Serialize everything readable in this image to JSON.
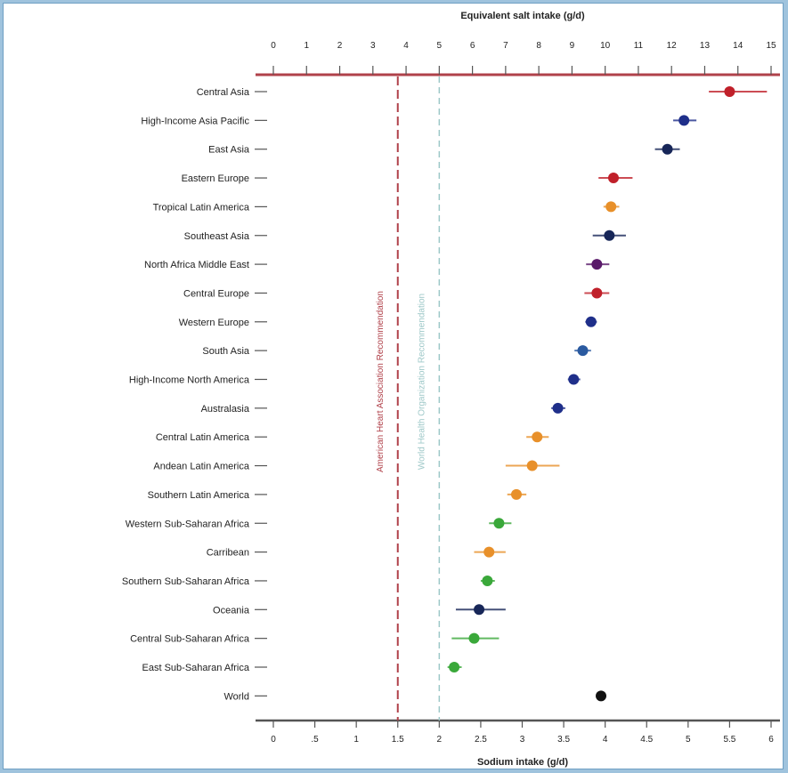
{
  "chart_data": {
    "type": "scatter",
    "top_axis_title": "Equivalent salt intake (g/d)",
    "xlabel": "Sodium intake (g/d)",
    "top_xlim": [
      0,
      15
    ],
    "xlim": [
      0,
      6
    ],
    "top_ticks": [
      "0",
      "1",
      "2",
      "3",
      "4",
      "5",
      "6",
      "7",
      "8",
      "9",
      "10",
      "11",
      "12",
      "13",
      "14",
      "15"
    ],
    "bottom_ticks": [
      "0",
      ".5",
      "1",
      "1.5",
      "2",
      "2.5",
      "3",
      "3.5",
      "4",
      "4.5",
      "5",
      "5.5",
      "6"
    ],
    "reference_lines": [
      {
        "label": "American Heart Association Recommendation",
        "value": 1.5,
        "color": "#b0414a"
      },
      {
        "label": "World Health Organization Recommendation",
        "value": 2.0,
        "color": "#9ec8c8"
      }
    ],
    "categories": [
      "Central Asia",
      "High-Income Asia Pacific",
      "East Asia",
      "Eastern Europe",
      "Tropical Latin America",
      "Southeast Asia",
      "North Africa Middle East",
      "Central Europe",
      "Western Europe",
      "South Asia",
      "High-Income North America",
      "Australasia",
      "Central Latin America",
      "Andean Latin America",
      "Southern Latin America",
      "Western Sub-Saharan Africa",
      "Carribean",
      "Southern Sub-Saharan Africa",
      "Oceania",
      "Central Sub-Saharan Africa",
      "East Sub-Saharan Africa",
      "World"
    ],
    "points": [
      {
        "y": "Central Asia",
        "x": 5.5,
        "low": 5.25,
        "high": 5.95,
        "color": "#c0202a"
      },
      {
        "y": "High-Income Asia Pacific",
        "x": 4.95,
        "low": 4.82,
        "high": 5.1,
        "color": "#1f2f8a"
      },
      {
        "y": "East Asia",
        "x": 4.75,
        "low": 4.6,
        "high": 4.9,
        "color": "#172658"
      },
      {
        "y": "Eastern Europe",
        "x": 4.1,
        "low": 3.92,
        "high": 4.33,
        "color": "#c0202a"
      },
      {
        "y": "Tropical Latin America",
        "x": 4.07,
        "low": 3.98,
        "high": 4.17,
        "color": "#e8902a"
      },
      {
        "y": "Southeast Asia",
        "x": 4.05,
        "low": 3.85,
        "high": 4.25,
        "color": "#172658"
      },
      {
        "y": "North Africa Middle East",
        "x": 3.9,
        "low": 3.77,
        "high": 4.05,
        "color": "#5a1a6a"
      },
      {
        "y": "Central Europe",
        "x": 3.9,
        "low": 3.75,
        "high": 4.05,
        "color": "#c0202a"
      },
      {
        "y": "Western Europe",
        "x": 3.83,
        "low": 3.76,
        "high": 3.9,
        "color": "#1f2f8a"
      },
      {
        "y": "South Asia",
        "x": 3.73,
        "low": 3.63,
        "high": 3.83,
        "color": "#2a5aa0"
      },
      {
        "y": "High-Income North America",
        "x": 3.62,
        "low": 3.55,
        "high": 3.7,
        "color": "#1f2f8a"
      },
      {
        "y": "Australasia",
        "x": 3.43,
        "low": 3.35,
        "high": 3.52,
        "color": "#1f2f8a"
      },
      {
        "y": "Central Latin America",
        "x": 3.18,
        "low": 3.05,
        "high": 3.32,
        "color": "#e8902a"
      },
      {
        "y": "Andean Latin America",
        "x": 3.12,
        "low": 2.8,
        "high": 3.45,
        "color": "#e8902a"
      },
      {
        "y": "Southern Latin America",
        "x": 2.93,
        "low": 2.82,
        "high": 3.05,
        "color": "#e8902a"
      },
      {
        "y": "Western Sub-Saharan Africa",
        "x": 2.72,
        "low": 2.6,
        "high": 2.87,
        "color": "#3aa83a"
      },
      {
        "y": "Carribean",
        "x": 2.6,
        "low": 2.42,
        "high": 2.8,
        "color": "#e8902a"
      },
      {
        "y": "Southern Sub-Saharan Africa",
        "x": 2.58,
        "low": 2.5,
        "high": 2.67,
        "color": "#3aa83a"
      },
      {
        "y": "Oceania",
        "x": 2.48,
        "low": 2.2,
        "high": 2.8,
        "color": "#172658"
      },
      {
        "y": "Central Sub-Saharan Africa",
        "x": 2.42,
        "low": 2.15,
        "high": 2.72,
        "color": "#3aa83a"
      },
      {
        "y": "East Sub-Saharan Africa",
        "x": 2.18,
        "low": 2.1,
        "high": 2.27,
        "color": "#3aa83a"
      },
      {
        "y": "World",
        "x": 3.95,
        "low": 3.95,
        "high": 3.95,
        "color": "#111111"
      }
    ],
    "axis_color": "#b0414a",
    "grid": false
  }
}
